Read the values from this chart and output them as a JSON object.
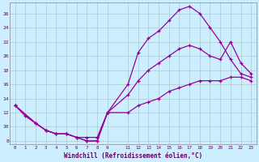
{
  "xlabel": "Windchill (Refroidissement éolien,°C)",
  "bg_color": "#cceeff",
  "line_color": "#990099",
  "grid_color": "#aacccc",
  "xlim": [
    -0.5,
    23.5
  ],
  "ylim": [
    7.5,
    27.5
  ],
  "yticks": [
    8,
    10,
    12,
    14,
    16,
    18,
    20,
    22,
    24,
    26
  ],
  "xticks": [
    0,
    1,
    2,
    3,
    4,
    5,
    6,
    7,
    8,
    9,
    11,
    12,
    13,
    14,
    15,
    16,
    17,
    18,
    19,
    20,
    21,
    22,
    23
  ],
  "series1_x": [
    0,
    1,
    2,
    3,
    4,
    5,
    6,
    7,
    8,
    9,
    11,
    12,
    13,
    14,
    15,
    16,
    17,
    18,
    19,
    20,
    21,
    22,
    23
  ],
  "series1_y": [
    13,
    11.5,
    10.5,
    9.5,
    9,
    9,
    8.5,
    8.5,
    8.5,
    12,
    16,
    20.5,
    22.5,
    23.5,
    25,
    26.5,
    27,
    26,
    24,
    22,
    19.5,
    17.5,
    17
  ],
  "series2_x": [
    0,
    2,
    3,
    4,
    5,
    6,
    7,
    8,
    9,
    11,
    12,
    13,
    14,
    15,
    16,
    17,
    18,
    19,
    20,
    21,
    22,
    23
  ],
  "series2_y": [
    13,
    10.5,
    9.5,
    9,
    9,
    8.5,
    8,
    8,
    12,
    14.5,
    16.5,
    18,
    19,
    20,
    21,
    21.5,
    21,
    20,
    19.5,
    22,
    19,
    17.5
  ],
  "series3_x": [
    0,
    2,
    3,
    4,
    5,
    6,
    7,
    8,
    9,
    11,
    12,
    13,
    14,
    15,
    16,
    17,
    18,
    19,
    20,
    21,
    22,
    23
  ],
  "series3_y": [
    13,
    10.5,
    9.5,
    9,
    9,
    8.5,
    8,
    8,
    12,
    12,
    13,
    13.5,
    14,
    15,
    15.5,
    16,
    16.5,
    16.5,
    16.5,
    17,
    17,
    16.5
  ]
}
